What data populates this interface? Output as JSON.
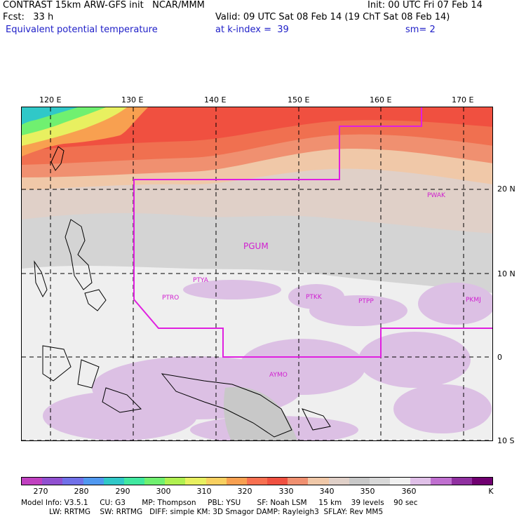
{
  "header": {
    "title_left": "CONTRAST 15km ARW-GFS init   NCAR/MMM",
    "init": "Init: 00 UTC Fri 07 Feb 14",
    "fcst": "Fcst:   33 h",
    "valid": "Valid: 09 UTC Sat 08 Feb 14 (19 ChT Sat 08 Feb 14)",
    "field": "Equivalent potential temperature",
    "level": "at k-index =  39",
    "smooth": "sm= 2"
  },
  "map": {
    "longitude_labels": [
      "120 E",
      "130 E",
      "140 E",
      "150 E",
      "160 E",
      "170 E"
    ],
    "latitude_labels": [
      "20 N",
      "10 N",
      "0",
      "10 S"
    ],
    "stations": [
      "PWAK",
      "PGUM",
      "PTYA",
      "PTRO",
      "PTKK",
      "PTPP",
      "PKMJ",
      "AYMO"
    ]
  },
  "colorbar": {
    "colors": [
      "#c040c0",
      "#9050d0",
      "#7070e8",
      "#5098f0",
      "#30c8c8",
      "#40e8a0",
      "#70f070",
      "#b0f050",
      "#e8f060",
      "#f8d060",
      "#f8a050",
      "#f87050",
      "#f05040",
      "#f09070",
      "#f0c8a8",
      "#e0d0c8",
      "#c8c8c8",
      "#d8d8d8",
      "#f0f0f0",
      "#e0c0e8",
      "#c070d0",
      "#9030a0",
      "#700070"
    ],
    "labels": [
      "270",
      "280",
      "290",
      "300",
      "310",
      "320",
      "330",
      "340",
      "350",
      "360",
      "K"
    ]
  },
  "model_info": {
    "line1": "Model Info: V3.5.1     CU: G3       MP: Thompson     PBL: YSU       SF: Noah LSM     15 km    39 levels    90 sec",
    "line2": "            LW: RRTMG    SW: RRTMG   DIFF: simple KM: 3D Smagor DAMP: Rayleigh3  SFLAY: Rev MM5"
  }
}
